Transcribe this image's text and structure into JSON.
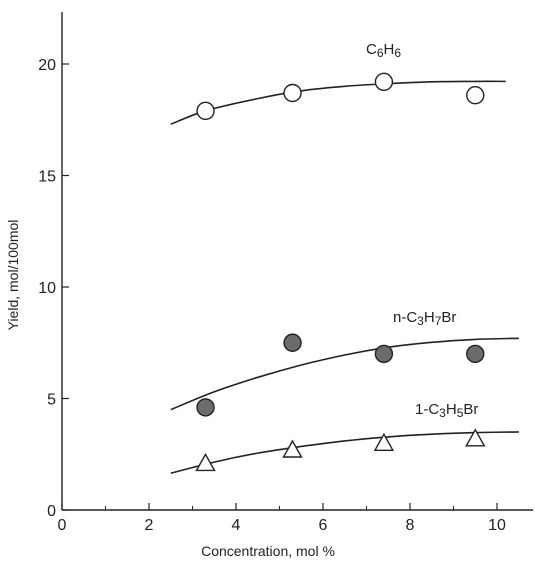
{
  "chart_data": {
    "type": "scatter",
    "xlabel": "Concentration, mol %",
    "ylabel": "Yield, mol/100mol",
    "xlim": [
      0,
      10.5
    ],
    "ylim": [
      0,
      22
    ],
    "x_ticks": [
      0,
      2,
      4,
      6,
      8,
      10
    ],
    "y_ticks": [
      0,
      5,
      10,
      15,
      20
    ],
    "x_tick_labels": [
      "0",
      "2",
      "4",
      "6",
      "8",
      "10"
    ],
    "y_tick_labels": [
      "0",
      "5",
      "10",
      "15",
      "20"
    ],
    "grid": false,
    "series": [
      {
        "name": "C6H6",
        "label_base": "C",
        "label_sub1": "6",
        "label_mid": "H",
        "label_sub2": "6",
        "label_tail": "",
        "marker": "open-circle",
        "x": [
          3.3,
          5.3,
          7.4,
          9.5
        ],
        "y": [
          17.9,
          18.7,
          19.2,
          18.6
        ],
        "curve": {
          "x": [
            2.5,
            3.3,
            4.5,
            5.5,
            6.5,
            7.5,
            8.5,
            9.5,
            10.2
          ],
          "y": [
            17.3,
            17.9,
            18.45,
            18.8,
            19.0,
            19.12,
            19.2,
            19.22,
            19.22
          ]
        }
      },
      {
        "name": "n-C3H7Br",
        "label_base": "n-C",
        "label_sub1": "3",
        "label_mid": "H",
        "label_sub2": "7",
        "label_tail": "Br",
        "marker": "filled-circle",
        "x": [
          3.3,
          5.3,
          7.4,
          9.5
        ],
        "y": [
          4.6,
          7.5,
          7.0,
          7.0
        ],
        "curve": {
          "x": [
            2.5,
            3.5,
            4.5,
            5.5,
            6.5,
            7.5,
            8.5,
            9.5,
            10.5
          ],
          "y": [
            4.5,
            5.3,
            5.95,
            6.5,
            6.95,
            7.3,
            7.52,
            7.65,
            7.7
          ]
        }
      },
      {
        "name": "1-C3H5Br",
        "label_base": "1-C",
        "label_sub1": "3",
        "label_mid": "H",
        "label_sub2": "5",
        "label_tail": "Br",
        "marker": "open-triangle",
        "x": [
          3.3,
          5.3,
          7.4,
          9.5
        ],
        "y": [
          2.1,
          2.7,
          3.0,
          3.2
        ],
        "curve": {
          "x": [
            2.5,
            3.5,
            4.5,
            5.5,
            6.5,
            7.5,
            8.5,
            9.5,
            10.5
          ],
          "y": [
            1.65,
            2.15,
            2.55,
            2.85,
            3.1,
            3.28,
            3.4,
            3.47,
            3.5
          ]
        }
      }
    ],
    "colors": {
      "axis": "#222222",
      "marker_fill": "#6b6b6b",
      "marker_stroke": "#222222"
    }
  }
}
